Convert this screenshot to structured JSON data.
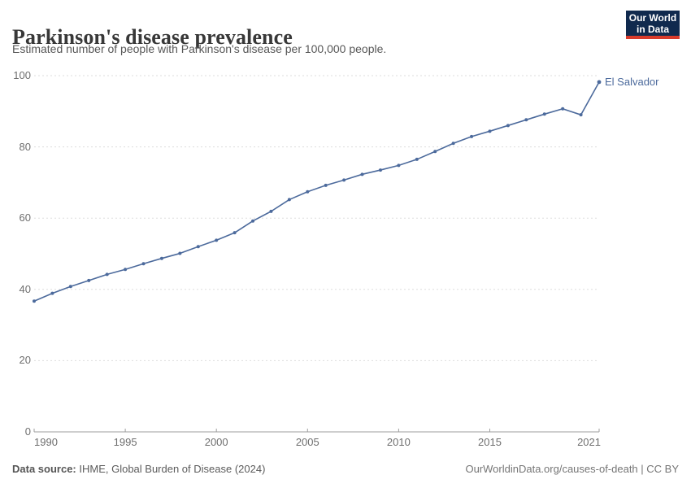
{
  "header": {
    "title": "Parkinson's disease prevalence",
    "subtitle": "Estimated number of people with Parkinson's disease per 100,000 people."
  },
  "logo": {
    "line1": "Our World",
    "line2": "in Data"
  },
  "colors": {
    "line": "#4C6A9C",
    "logo_bg": "#102A4E",
    "logo_accent": "#D93B2B",
    "grid": "#DDDDDD",
    "axis": "#9E9E9E",
    "tick_text": "#6E6E6E"
  },
  "chart_data": {
    "type": "line",
    "title": "Parkinson's disease prevalence",
    "subtitle": "Estimated number of people with Parkinson's disease per 100,000 people.",
    "xlabel": "",
    "ylabel": "",
    "xlim": [
      1990,
      2021
    ],
    "ylim": [
      0,
      100
    ],
    "x_ticks": [
      1990,
      1995,
      2000,
      2005,
      2010,
      2015,
      2021
    ],
    "y_ticks": [
      0,
      20,
      40,
      60,
      80,
      100
    ],
    "grid": "horizontal-dashed",
    "legend_position": "end-of-line label",
    "series": [
      {
        "name": "El Salvador",
        "color": "#4C6A9C",
        "x": [
          1990,
          1991,
          1992,
          1993,
          1994,
          1995,
          1996,
          1997,
          1998,
          1999,
          2000,
          2001,
          2002,
          2003,
          2004,
          2005,
          2006,
          2007,
          2008,
          2009,
          2010,
          2011,
          2012,
          2013,
          2014,
          2015,
          2016,
          2017,
          2018,
          2019,
          2020,
          2021
        ],
        "values": [
          36.7,
          38.9,
          40.8,
          42.5,
          44.2,
          45.6,
          47.2,
          48.7,
          50.1,
          52.0,
          53.8,
          55.9,
          59.2,
          61.9,
          65.2,
          67.4,
          69.2,
          70.7,
          72.3,
          73.5,
          74.8,
          76.5,
          78.7,
          81.0,
          82.9,
          84.4,
          86.0,
          87.6,
          89.2,
          90.7,
          89.0,
          98.2
        ]
      }
    ]
  },
  "footer": {
    "source_bold": "Data source:",
    "source_text": " IHME, Global Burden of Disease (2024)",
    "right_text": "OurWorldinData.org/causes-of-death | CC BY"
  }
}
